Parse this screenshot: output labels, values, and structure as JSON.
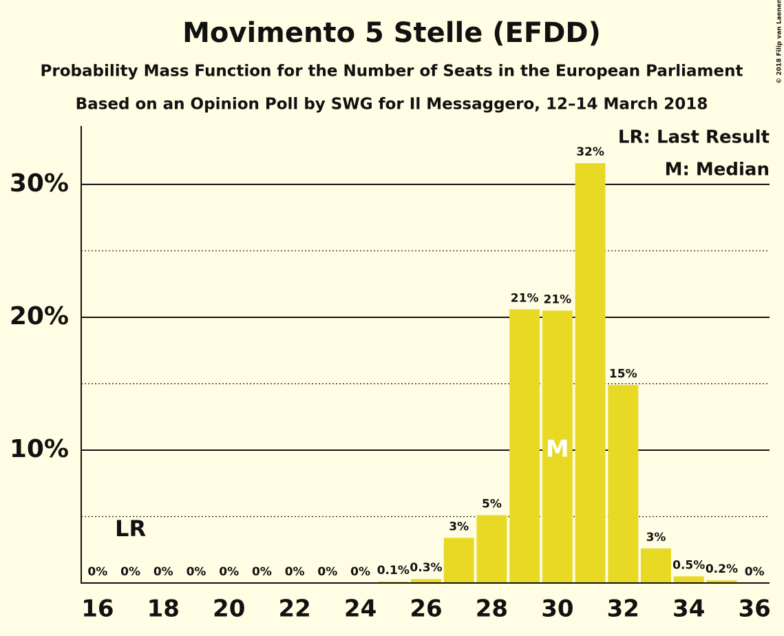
{
  "chart_data": {
    "type": "bar",
    "title": "Movimento 5 Stelle (EFDD)",
    "subtitle": "Probability Mass Function for the Number of Seats in the European Parliament",
    "subtitle2": "Based on an Opinion Poll by SWG for Il Messaggero, 12–14 March 2018",
    "copyright": "© 2018 Filip van Laenen",
    "x": [
      16,
      17,
      18,
      19,
      20,
      21,
      22,
      23,
      24,
      25,
      26,
      27,
      28,
      29,
      30,
      31,
      32,
      33,
      34,
      35,
      36
    ],
    "values": [
      0,
      0,
      0,
      0,
      0,
      0,
      0,
      0,
      0,
      0.1,
      0.3,
      3.4,
      5.1,
      20.6,
      20.5,
      31.6,
      14.9,
      2.6,
      0.5,
      0.2,
      0
    ],
    "value_labels": [
      "0%",
      "0%",
      "0%",
      "0%",
      "0%",
      "0%",
      "0%",
      "0%",
      "0%",
      "0.1%",
      "0.3%",
      "3%",
      "5%",
      "21%",
      "21%",
      "32%",
      "15%",
      "3%",
      "0.5%",
      "0.2%",
      "0%"
    ],
    "color": "#e8d925",
    "xlim": [
      15.5,
      36.5
    ],
    "xticks": [
      16,
      18,
      20,
      22,
      24,
      26,
      28,
      30,
      32,
      34,
      36
    ],
    "ylim": [
      0,
      34.4
    ],
    "yticks": [
      {
        "value": 10,
        "label": "10%"
      },
      {
        "value": 20,
        "label": "20%"
      },
      {
        "value": 30,
        "label": "30%"
      }
    ],
    "minor_yticks": [
      5,
      15,
      25
    ],
    "grid": true,
    "annotations": [
      {
        "x": 17,
        "label": "LR"
      },
      {
        "x": 30,
        "label": "M"
      }
    ],
    "legend": [
      "LR: Last Result",
      "M: Median"
    ]
  }
}
